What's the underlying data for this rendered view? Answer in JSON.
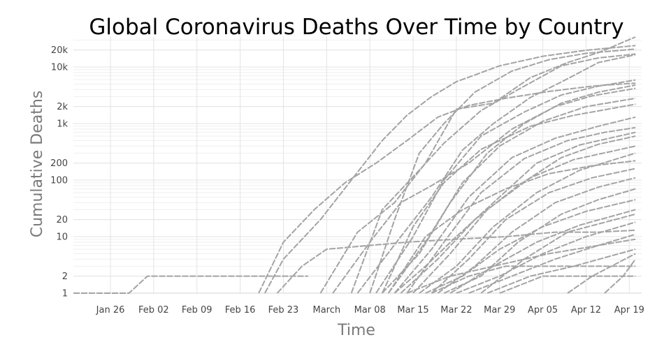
{
  "chart_data": {
    "type": "line",
    "title": "Global Coronavirus Deaths Over Time by Country",
    "xlabel": "Time",
    "ylabel": "Cumulative Deaths",
    "x_range": [
      "2020-01-20",
      "2020-04-21"
    ],
    "y_scale": "log",
    "ylim": [
      1,
      35000
    ],
    "grid": true,
    "legend": "none",
    "line_style": "dashed",
    "line_color": "#a3a3a3",
    "x_ticks": [
      {
        "date": "2020-01-26",
        "label": "Jan 26"
      },
      {
        "date": "2020-02-02",
        "label": "Feb 02"
      },
      {
        "date": "2020-02-09",
        "label": "Feb 09"
      },
      {
        "date": "2020-02-16",
        "label": "Feb 16"
      },
      {
        "date": "2020-02-23",
        "label": "Feb 23"
      },
      {
        "date": "2020-03-01",
        "label": "March"
      },
      {
        "date": "2020-03-08",
        "label": "Mar 08"
      },
      {
        "date": "2020-03-15",
        "label": "Mar 15"
      },
      {
        "date": "2020-03-22",
        "label": "Mar 22"
      },
      {
        "date": "2020-03-29",
        "label": "Mar 29"
      },
      {
        "date": "2020-04-05",
        "label": "Apr 05"
      },
      {
        "date": "2020-04-12",
        "label": "Apr 12"
      },
      {
        "date": "2020-04-19",
        "label": "Apr 19"
      }
    ],
    "y_ticks": [
      {
        "value": 1,
        "label": "1"
      },
      {
        "value": 2,
        "label": "2"
      },
      {
        "value": 10,
        "label": "10"
      },
      {
        "value": 20,
        "label": "20"
      },
      {
        "value": 100,
        "label": "100"
      },
      {
        "value": 200,
        "label": "200"
      },
      {
        "value": 1000,
        "label": "1k"
      },
      {
        "value": 2000,
        "label": "2k"
      },
      {
        "value": 10000,
        "label": "10k"
      },
      {
        "value": 20000,
        "label": "20k"
      }
    ],
    "series": [
      {
        "points": [
          [
            "2020-01-20",
            1
          ],
          [
            "2020-01-29",
            1
          ],
          [
            "2020-02-01",
            2
          ],
          [
            "2020-02-22",
            2
          ],
          [
            "2020-02-27",
            2
          ]
        ]
      },
      {
        "points": [
          [
            "2020-02-20",
            1
          ],
          [
            "2020-02-23",
            4
          ],
          [
            "2020-02-29",
            20
          ],
          [
            "2020-03-05",
            100
          ],
          [
            "2020-03-10",
            500
          ],
          [
            "2020-03-14",
            1400
          ],
          [
            "2020-03-18",
            3000
          ],
          [
            "2020-03-22",
            5500
          ],
          [
            "2020-03-29",
            10500
          ],
          [
            "2020-04-05",
            15500
          ],
          [
            "2020-04-12",
            19800
          ],
          [
            "2020-04-20",
            24000
          ]
        ]
      },
      {
        "points": [
          [
            "2020-02-19",
            1
          ],
          [
            "2020-02-23",
            8
          ],
          [
            "2020-02-28",
            30
          ],
          [
            "2020-03-04",
            90
          ],
          [
            "2020-03-09",
            200
          ],
          [
            "2020-03-14",
            500
          ],
          [
            "2020-03-19",
            1300
          ],
          [
            "2020-03-24",
            2100
          ],
          [
            "2020-03-30",
            2800
          ],
          [
            "2020-04-06",
            3700
          ],
          [
            "2020-04-13",
            4600
          ],
          [
            "2020-04-20",
            5200
          ]
        ]
      },
      {
        "points": [
          [
            "2020-03-08",
            1
          ],
          [
            "2020-03-12",
            20
          ],
          [
            "2020-03-16",
            300
          ],
          [
            "2020-03-20",
            1000
          ],
          [
            "2020-03-25",
            3600
          ],
          [
            "2020-03-31",
            8500
          ],
          [
            "2020-04-06",
            13500
          ],
          [
            "2020-04-12",
            17500
          ],
          [
            "2020-04-20",
            20800
          ]
        ]
      },
      {
        "points": [
          [
            "2020-02-29",
            1
          ],
          [
            "2020-03-06",
            12
          ],
          [
            "2020-03-12",
            40
          ],
          [
            "2020-03-17",
            200
          ],
          [
            "2020-03-22",
            1800
          ],
          [
            "2020-03-28",
            2300
          ],
          [
            "2020-04-03",
            6500
          ],
          [
            "2020-04-09",
            12000
          ],
          [
            "2020-04-14",
            18000
          ],
          [
            "2020-04-20",
            34000
          ]
        ]
      },
      {
        "points": [
          [
            "2020-03-05",
            1
          ],
          [
            "2020-03-10",
            30
          ],
          [
            "2020-03-16",
            150
          ],
          [
            "2020-03-20",
            450
          ],
          [
            "2020-03-26",
            1700
          ],
          [
            "2020-04-01",
            4000
          ],
          [
            "2020-04-08",
            10500
          ],
          [
            "2020-04-14",
            14500
          ],
          [
            "2020-04-20",
            17000
          ]
        ]
      },
      {
        "points": [
          [
            "2020-03-06",
            1
          ],
          [
            "2020-03-13",
            10
          ],
          [
            "2020-03-18",
            50
          ],
          [
            "2020-03-23",
            340
          ],
          [
            "2020-03-28",
            1000
          ],
          [
            "2020-04-03",
            2900
          ],
          [
            "2020-04-09",
            6200
          ],
          [
            "2020-04-14",
            12000
          ],
          [
            "2020-04-20",
            16500
          ]
        ]
      },
      {
        "points": [
          [
            "2020-03-02",
            1
          ],
          [
            "2020-03-08",
            8
          ],
          [
            "2020-03-13",
            40
          ],
          [
            "2020-03-18",
            80
          ],
          [
            "2020-03-24",
            200
          ],
          [
            "2020-03-31",
            800
          ],
          [
            "2020-04-07",
            2000
          ],
          [
            "2020-04-13",
            3100
          ],
          [
            "2020-04-20",
            4200
          ]
        ]
      },
      {
        "points": [
          [
            "2020-03-09",
            1
          ],
          [
            "2020-03-15",
            10
          ],
          [
            "2020-03-20",
            100
          ],
          [
            "2020-03-26",
            600
          ],
          [
            "2020-04-02",
            1600
          ],
          [
            "2020-04-08",
            3200
          ],
          [
            "2020-04-14",
            4600
          ],
          [
            "2020-04-20",
            5900
          ]
        ]
      },
      {
        "points": [
          [
            "2020-03-10",
            1
          ],
          [
            "2020-03-16",
            5
          ],
          [
            "2020-03-21",
            40
          ],
          [
            "2020-03-27",
            300
          ],
          [
            "2020-04-02",
            1000
          ],
          [
            "2020-04-08",
            2300
          ],
          [
            "2020-04-14",
            3600
          ],
          [
            "2020-04-20",
            4800
          ]
        ]
      },
      {
        "points": [
          [
            "2020-02-22",
            1
          ],
          [
            "2020-02-26",
            3
          ],
          [
            "2020-03-01",
            6
          ],
          [
            "2020-03-08",
            7
          ],
          [
            "2020-03-14",
            8
          ],
          [
            "2020-03-22",
            9
          ],
          [
            "2020-03-30",
            10
          ],
          [
            "2020-04-07",
            12
          ],
          [
            "2020-04-14",
            12
          ],
          [
            "2020-04-20",
            13
          ]
        ]
      },
      {
        "points": [
          [
            "2020-03-11",
            1
          ],
          [
            "2020-03-17",
            8
          ],
          [
            "2020-03-23",
            90
          ],
          [
            "2020-03-29",
            400
          ],
          [
            "2020-04-05",
            1100
          ],
          [
            "2020-04-12",
            2000
          ],
          [
            "2020-04-20",
            2800
          ]
        ]
      },
      {
        "points": [
          [
            "2020-03-10",
            1
          ],
          [
            "2020-03-15",
            15
          ],
          [
            "2020-03-20",
            90
          ],
          [
            "2020-03-26",
            350
          ],
          [
            "2020-04-03",
            900
          ],
          [
            "2020-04-10",
            1400
          ],
          [
            "2020-04-20",
            2200
          ]
        ]
      },
      {
        "points": [
          [
            "2020-03-12",
            1
          ],
          [
            "2020-03-18",
            6
          ],
          [
            "2020-03-24",
            50
          ],
          [
            "2020-03-31",
            250
          ],
          [
            "2020-04-07",
            550
          ],
          [
            "2020-04-14",
            900
          ],
          [
            "2020-04-20",
            1300
          ]
        ]
      },
      {
        "points": [
          [
            "2020-03-14",
            1
          ],
          [
            "2020-03-20",
            8
          ],
          [
            "2020-03-26",
            60
          ],
          [
            "2020-04-02",
            240
          ],
          [
            "2020-04-09",
            500
          ],
          [
            "2020-04-15",
            700
          ],
          [
            "2020-04-20",
            850
          ]
        ]
      },
      {
        "points": [
          [
            "2020-03-13",
            1
          ],
          [
            "2020-03-19",
            4
          ],
          [
            "2020-03-25",
            20
          ],
          [
            "2020-04-01",
            80
          ],
          [
            "2020-04-08",
            250
          ],
          [
            "2020-04-14",
            430
          ],
          [
            "2020-04-20",
            600
          ]
        ]
      },
      {
        "points": [
          [
            "2020-03-12",
            1
          ],
          [
            "2020-03-17",
            3
          ],
          [
            "2020-03-22",
            10
          ],
          [
            "2020-03-28",
            40
          ],
          [
            "2020-04-04",
            200
          ],
          [
            "2020-04-11",
            420
          ],
          [
            "2020-04-20",
            700
          ]
        ]
      },
      {
        "points": [
          [
            "2020-03-15",
            1
          ],
          [
            "2020-03-21",
            5
          ],
          [
            "2020-03-27",
            30
          ],
          [
            "2020-04-03",
            110
          ],
          [
            "2020-04-10",
            230
          ],
          [
            "2020-04-20",
            400
          ]
        ]
      },
      {
        "points": [
          [
            "2020-03-16",
            1
          ],
          [
            "2020-03-22",
            3
          ],
          [
            "2020-03-28",
            15
          ],
          [
            "2020-04-04",
            60
          ],
          [
            "2020-04-11",
            150
          ],
          [
            "2020-04-20",
            300
          ]
        ]
      },
      {
        "points": [
          [
            "2020-03-11",
            1
          ],
          [
            "2020-03-17",
            10
          ],
          [
            "2020-03-23",
            30
          ],
          [
            "2020-03-30",
            70
          ],
          [
            "2020-04-06",
            130
          ],
          [
            "2020-04-13",
            180
          ],
          [
            "2020-04-20",
            220
          ]
        ]
      },
      {
        "points": [
          [
            "2020-03-18",
            1
          ],
          [
            "2020-03-24",
            4
          ],
          [
            "2020-03-30",
            20
          ],
          [
            "2020-04-06",
            60
          ],
          [
            "2020-04-13",
            110
          ],
          [
            "2020-04-20",
            160
          ]
        ]
      },
      {
        "points": [
          [
            "2020-03-19",
            1
          ],
          [
            "2020-03-25",
            3
          ],
          [
            "2020-03-31",
            12
          ],
          [
            "2020-04-07",
            40
          ],
          [
            "2020-04-14",
            75
          ],
          [
            "2020-04-20",
            110
          ]
        ]
      },
      {
        "points": [
          [
            "2020-03-20",
            1
          ],
          [
            "2020-03-26",
            2
          ],
          [
            "2020-04-01",
            8
          ],
          [
            "2020-04-08",
            25
          ],
          [
            "2020-04-14",
            45
          ],
          [
            "2020-04-20",
            70
          ]
        ]
      },
      {
        "points": [
          [
            "2020-03-17",
            1
          ],
          [
            "2020-03-23",
            2
          ],
          [
            "2020-03-29",
            6
          ],
          [
            "2020-04-05",
            15
          ],
          [
            "2020-04-12",
            28
          ],
          [
            "2020-04-20",
            45
          ]
        ]
      },
      {
        "points": [
          [
            "2020-03-21",
            1
          ],
          [
            "2020-03-28",
            3
          ],
          [
            "2020-04-04",
            8
          ],
          [
            "2020-04-11",
            16
          ],
          [
            "2020-04-20",
            30
          ]
        ]
      },
      {
        "points": [
          [
            "2020-03-22",
            1
          ],
          [
            "2020-03-29",
            2
          ],
          [
            "2020-04-05",
            5
          ],
          [
            "2020-04-12",
            10
          ],
          [
            "2020-04-20",
            18
          ]
        ]
      },
      {
        "points": [
          [
            "2020-03-24",
            1
          ],
          [
            "2020-03-31",
            2
          ],
          [
            "2020-04-07",
            4
          ],
          [
            "2020-04-14",
            7
          ],
          [
            "2020-04-20",
            11
          ]
        ]
      },
      {
        "points": [
          [
            "2020-03-14",
            1
          ],
          [
            "2020-03-21",
            2
          ],
          [
            "2020-03-28",
            3
          ],
          [
            "2020-04-06",
            5
          ],
          [
            "2020-04-14",
            7
          ],
          [
            "2020-04-20",
            9
          ]
        ]
      },
      {
        "points": [
          [
            "2020-03-27",
            1
          ],
          [
            "2020-04-03",
            2
          ],
          [
            "2020-04-10",
            3
          ],
          [
            "2020-04-20",
            6
          ]
        ]
      },
      {
        "points": [
          [
            "2020-03-18",
            1
          ],
          [
            "2020-03-24",
            2
          ],
          [
            "2020-03-30",
            3
          ],
          [
            "2020-04-20",
            3
          ]
        ]
      },
      {
        "points": [
          [
            "2020-03-29",
            1
          ],
          [
            "2020-04-05",
            2
          ],
          [
            "2020-04-20",
            2
          ]
        ]
      },
      {
        "points": [
          [
            "2020-04-09",
            1
          ],
          [
            "2020-04-13",
            2
          ],
          [
            "2020-04-20",
            5
          ]
        ]
      },
      {
        "points": [
          [
            "2020-04-15",
            1
          ],
          [
            "2020-04-18",
            2
          ],
          [
            "2020-04-20",
            4
          ]
        ]
      },
      {
        "points": [
          [
            "2020-03-26",
            1
          ],
          [
            "2020-04-02",
            4
          ],
          [
            "2020-04-09",
            12
          ],
          [
            "2020-04-20",
            25
          ]
        ]
      }
    ]
  }
}
